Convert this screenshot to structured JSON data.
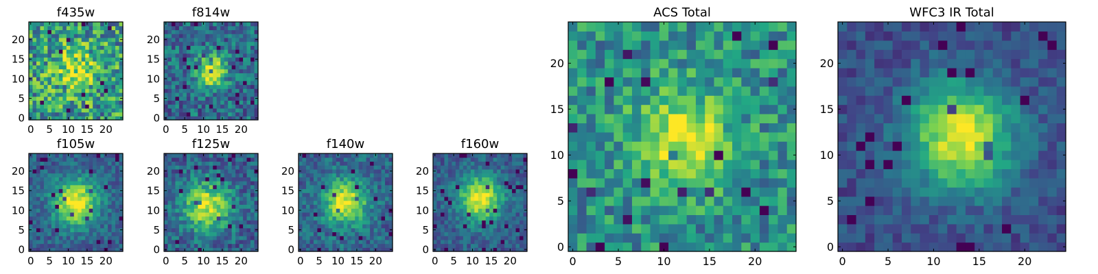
{
  "colors": {
    "colormap": "viridis",
    "stops": [
      "#440154",
      "#414487",
      "#2a788e",
      "#22a884",
      "#7ad151",
      "#fde725"
    ],
    "axis": "#000000",
    "background": "#ffffff"
  },
  "chart_data": [
    {
      "type": "heatmap",
      "title": "f435w",
      "grid_size": 25,
      "xticks": [
        0,
        5,
        10,
        15,
        20
      ],
      "yticks": [
        0,
        5,
        10,
        15,
        20
      ],
      "xlim": [
        0,
        24
      ],
      "ylim": [
        0,
        24
      ],
      "noise": 0.32,
      "signal": 0.35,
      "center": [
        12,
        12
      ],
      "sigma": 4.0,
      "floor": 0.55,
      "seed": 11
    },
    {
      "type": "heatmap",
      "title": "f814w",
      "grid_size": 25,
      "xticks": [
        0,
        5,
        10,
        15,
        20
      ],
      "yticks": [
        0,
        5,
        10,
        15,
        20
      ],
      "xlim": [
        0,
        24
      ],
      "ylim": [
        0,
        24
      ],
      "noise": 0.22,
      "signal": 0.62,
      "center": [
        12,
        12
      ],
      "sigma": 3.0,
      "floor": 0.35,
      "seed": 23
    },
    {
      "type": "heatmap",
      "title": "f105w",
      "grid_size": 25,
      "xticks": [
        0,
        5,
        10,
        15,
        20
      ],
      "yticks": [
        0,
        5,
        10,
        15,
        20
      ],
      "xlim": [
        0,
        24
      ],
      "ylim": [
        0,
        24
      ],
      "noise": 0.14,
      "signal": 0.72,
      "center": [
        12,
        12
      ],
      "sigma": 4.2,
      "floor": 0.3,
      "seed": 37
    },
    {
      "type": "heatmap",
      "title": "f125w",
      "grid_size": 25,
      "xticks": [
        0,
        5,
        10,
        15,
        20
      ],
      "yticks": [
        0,
        5,
        10,
        15,
        20
      ],
      "xlim": [
        0,
        24
      ],
      "ylim": [
        0,
        24
      ],
      "noise": 0.18,
      "signal": 0.62,
      "center": [
        11,
        11
      ],
      "sigma": 4.6,
      "floor": 0.3,
      "seed": 41
    },
    {
      "type": "heatmap",
      "title": "f140w",
      "grid_size": 25,
      "xticks": [
        0,
        5,
        10,
        15,
        20
      ],
      "yticks": [
        0,
        5,
        10,
        15,
        20
      ],
      "xlim": [
        0,
        24
      ],
      "ylim": [
        0,
        24
      ],
      "noise": 0.16,
      "signal": 0.65,
      "center": [
        12,
        12
      ],
      "sigma": 4.0,
      "floor": 0.33,
      "seed": 53
    },
    {
      "type": "heatmap",
      "title": "f160w",
      "grid_size": 25,
      "xticks": [
        0,
        5,
        10,
        15,
        20
      ],
      "yticks": [
        0,
        5,
        10,
        15,
        20
      ],
      "xlim": [
        0,
        24
      ],
      "ylim": [
        0,
        24
      ],
      "noise": 0.13,
      "signal": 0.7,
      "center": [
        12,
        13
      ],
      "sigma": 4.0,
      "floor": 0.3,
      "seed": 67
    },
    {
      "type": "heatmap",
      "title": "ACS Total",
      "grid_size": 25,
      "xticks": [
        0,
        5,
        10,
        15,
        20
      ],
      "yticks": [
        0,
        5,
        10,
        15,
        20
      ],
      "xlim": [
        0,
        24
      ],
      "ylim": [
        0,
        24
      ],
      "noise": 0.22,
      "signal": 0.48,
      "center": [
        12,
        12
      ],
      "sigma": 3.5,
      "floor": 0.5,
      "seed": 79
    },
    {
      "type": "heatmap",
      "title": "WFC3 IR Total",
      "grid_size": 25,
      "xticks": [
        0,
        5,
        10,
        15,
        20
      ],
      "yticks": [
        0,
        5,
        10,
        15,
        20
      ],
      "xlim": [
        0,
        24
      ],
      "ylim": [
        0,
        24
      ],
      "noise": 0.11,
      "signal": 0.74,
      "center": [
        13,
        12
      ],
      "sigma": 4.0,
      "floor": 0.24,
      "seed": 97
    }
  ]
}
